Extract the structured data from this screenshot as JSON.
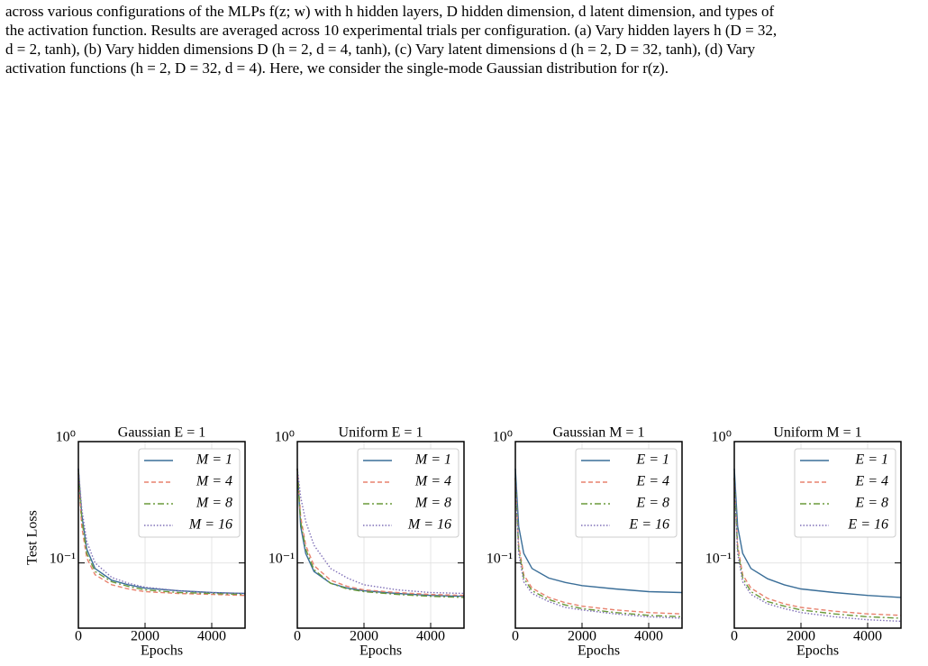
{
  "caption": {
    "lines": [
      "across various configurations of the MLPs f(z; w) with h hidden layers, D hidden dimension, d latent dimension, and types of",
      "the activation function. Results are averaged across 10 experimental trials per configuration. (a) Vary hidden layers h (D = 32,",
      "d = 2, tanh), (b) Vary hidden dimensions D (h = 2, d = 4, tanh), (c) Vary latent dimensions d (h = 2, D = 32, tanh), (d) Vary",
      "activation functions (h = 2, D = 32, d = 4). Here, we consider the single-mode Gaussian distribution for r(z)."
    ]
  },
  "chart_data": [
    {
      "type": "line",
      "title": "Gaussian E = 1",
      "xlabel": "Epochs",
      "ylabel": "Test Loss",
      "log_y": true,
      "grid": true,
      "legend": "upper right",
      "xlim": [
        0,
        5000
      ],
      "xticks": [
        0,
        2000,
        4000
      ],
      "ylim": [
        0.029,
        1
      ],
      "yticks": [
        {
          "value": 1,
          "label": "10⁰"
        },
        {
          "value": 0.1,
          "label": "10⁻¹"
        }
      ],
      "x": [
        0,
        100,
        250,
        500,
        1000,
        1500,
        2000,
        3000,
        4000,
        5000
      ],
      "series": [
        {
          "name": "M = 1",
          "color": "#3a6e98",
          "linestyle": "solid",
          "values": [
            0.6,
            0.25,
            0.13,
            0.09,
            0.072,
            0.066,
            0.062,
            0.059,
            0.057,
            0.056
          ]
        },
        {
          "name": "M = 4",
          "color": "#e8826e",
          "linestyle": "dashed",
          "values": [
            0.55,
            0.2,
            0.11,
            0.08,
            0.066,
            0.061,
            0.058,
            0.056,
            0.055,
            0.054
          ]
        },
        {
          "name": "M = 8",
          "color": "#6a9a3a",
          "linestyle": "dashdot",
          "values": [
            0.58,
            0.23,
            0.12,
            0.085,
            0.07,
            0.064,
            0.06,
            0.057,
            0.056,
            0.055
          ]
        },
        {
          "name": "M = 16",
          "color": "#8070b8",
          "linestyle": "dotted",
          "values": [
            0.6,
            0.28,
            0.15,
            0.1,
            0.076,
            0.068,
            0.063,
            0.059,
            0.057,
            0.056
          ]
        }
      ]
    },
    {
      "type": "line",
      "title": "Uniform E = 1",
      "xlabel": "Epochs",
      "log_y": true,
      "grid": true,
      "legend": "upper right",
      "xlim": [
        0,
        5000
      ],
      "xticks": [
        0,
        2000,
        4000
      ],
      "ylim": [
        0.029,
        1
      ],
      "yticks": [
        {
          "value": 1,
          "label": "10⁰"
        },
        {
          "value": 0.1,
          "label": "10⁻¹"
        }
      ],
      "x": [
        0,
        100,
        250,
        500,
        1000,
        1500,
        2000,
        3000,
        4000,
        5000
      ],
      "series": [
        {
          "name": "M = 1",
          "color": "#3a6e98",
          "linestyle": "solid",
          "values": [
            0.6,
            0.2,
            0.12,
            0.085,
            0.068,
            0.062,
            0.059,
            0.056,
            0.054,
            0.053
          ]
        },
        {
          "name": "M = 4",
          "color": "#e8826e",
          "linestyle": "dashed",
          "values": [
            0.6,
            0.24,
            0.14,
            0.095,
            0.072,
            0.064,
            0.06,
            0.057,
            0.055,
            0.054
          ]
        },
        {
          "name": "M = 8",
          "color": "#6a9a3a",
          "linestyle": "dashdot",
          "values": [
            0.6,
            0.22,
            0.13,
            0.088,
            0.068,
            0.061,
            0.058,
            0.055,
            0.053,
            0.052
          ]
        },
        {
          "name": "M = 16",
          "color": "#8070b8",
          "linestyle": "dotted",
          "values": [
            0.6,
            0.35,
            0.22,
            0.14,
            0.09,
            0.075,
            0.066,
            0.06,
            0.057,
            0.056
          ]
        }
      ]
    },
    {
      "type": "line",
      "title": "Gaussian M = 1",
      "xlabel": "Epochs",
      "log_y": true,
      "grid": true,
      "legend": "upper right",
      "xlim": [
        0,
        5000
      ],
      "xticks": [
        0,
        2000,
        4000
      ],
      "ylim": [
        0.029,
        1
      ],
      "yticks": [
        {
          "value": 1,
          "label": "10⁰"
        },
        {
          "value": 0.1,
          "label": "10⁻¹"
        }
      ],
      "x": [
        0,
        100,
        250,
        500,
        1000,
        1500,
        2000,
        3000,
        4000,
        5000
      ],
      "series": [
        {
          "name": "E = 1",
          "color": "#3a6e98",
          "linestyle": "solid",
          "values": [
            0.6,
            0.2,
            0.12,
            0.09,
            0.075,
            0.069,
            0.065,
            0.061,
            0.058,
            0.057
          ]
        },
        {
          "name": "E = 4",
          "color": "#e8826e",
          "linestyle": "dashed",
          "values": [
            0.5,
            0.14,
            0.08,
            0.062,
            0.052,
            0.047,
            0.044,
            0.041,
            0.039,
            0.038
          ]
        },
        {
          "name": "E = 8",
          "color": "#6a9a3a",
          "linestyle": "dashdot",
          "values": [
            0.5,
            0.13,
            0.075,
            0.059,
            0.05,
            0.045,
            0.042,
            0.039,
            0.037,
            0.036
          ]
        },
        {
          "name": "E = 16",
          "color": "#8070b8",
          "linestyle": "dotted",
          "values": [
            0.5,
            0.12,
            0.07,
            0.056,
            0.048,
            0.043,
            0.041,
            0.038,
            0.036,
            0.035
          ]
        }
      ]
    },
    {
      "type": "line",
      "title": "Uniform M = 1",
      "xlabel": "Epochs",
      "log_y": true,
      "grid": true,
      "legend": "upper right",
      "xlim": [
        0,
        5000
      ],
      "xticks": [
        0,
        2000,
        4000
      ],
      "ylim": [
        0.029,
        1
      ],
      "yticks": [
        {
          "value": 1,
          "label": "10⁰"
        },
        {
          "value": 0.1,
          "label": "10⁻¹"
        }
      ],
      "x": [
        0,
        100,
        250,
        500,
        1000,
        1500,
        2000,
        3000,
        4000,
        5000
      ],
      "series": [
        {
          "name": "E = 1",
          "color": "#3a6e98",
          "linestyle": "solid",
          "values": [
            0.6,
            0.2,
            0.12,
            0.09,
            0.074,
            0.066,
            0.061,
            0.057,
            0.054,
            0.052
          ]
        },
        {
          "name": "E = 4",
          "color": "#e8826e",
          "linestyle": "dashed",
          "values": [
            0.5,
            0.14,
            0.08,
            0.062,
            0.051,
            0.046,
            0.043,
            0.04,
            0.038,
            0.037
          ]
        },
        {
          "name": "E = 8",
          "color": "#6a9a3a",
          "linestyle": "dashdot",
          "values": [
            0.5,
            0.13,
            0.075,
            0.058,
            0.048,
            0.044,
            0.041,
            0.038,
            0.036,
            0.035
          ]
        },
        {
          "name": "E = 16",
          "color": "#8070b8",
          "linestyle": "dotted",
          "values": [
            0.5,
            0.12,
            0.07,
            0.055,
            0.046,
            0.042,
            0.039,
            0.036,
            0.034,
            0.033
          ]
        }
      ]
    }
  ]
}
